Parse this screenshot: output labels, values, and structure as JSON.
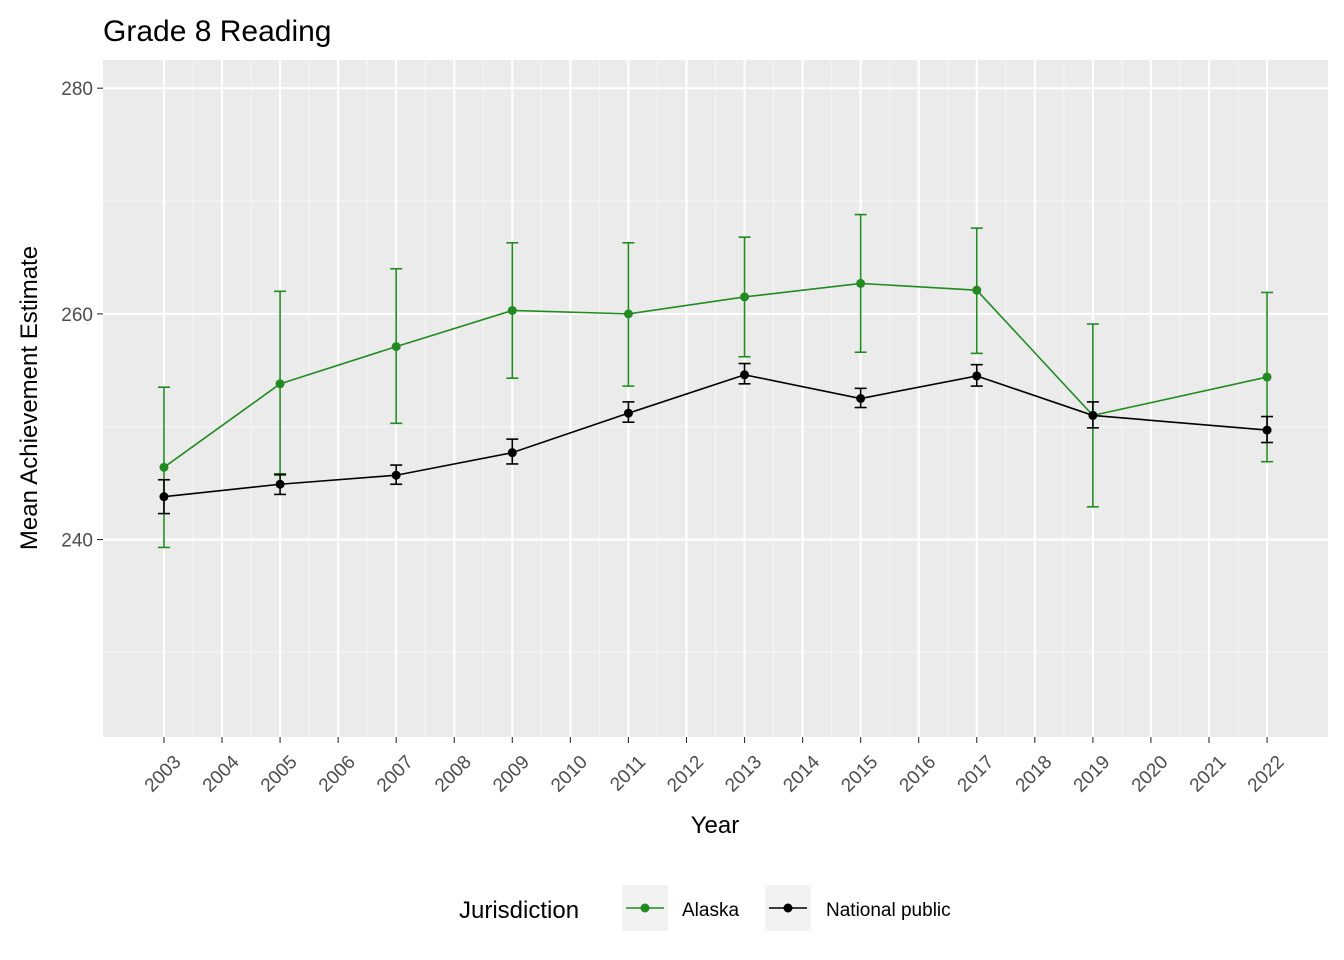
{
  "chart_data": {
    "type": "line",
    "title": "Grade 8 Reading",
    "xlabel": "Year",
    "ylabel": "Mean Achievement Estimate",
    "xlim": [
      2001.95,
      2023.05
    ],
    "ylim": [
      222.5,
      282.5
    ],
    "x_ticks": [
      "2003",
      "2004",
      "2005",
      "2006",
      "2007",
      "2008",
      "2009",
      "2010",
      "2011",
      "2012",
      "2013",
      "2014",
      "2015",
      "2016",
      "2017",
      "2018",
      "2019",
      "2020",
      "2021",
      "2022"
    ],
    "y_ticks": [
      "240",
      "260",
      "280"
    ],
    "grid": true,
    "legend": {
      "title": "Jurisdiction",
      "position": "bottom"
    },
    "series": [
      {
        "name": "Alaska",
        "color": "#228b22",
        "points": [
          {
            "x": 2003,
            "y": 246.4,
            "lo": 239.3,
            "hi": 253.5
          },
          {
            "x": 2005,
            "y": 253.8,
            "lo": 245.7,
            "hi": 262.0
          },
          {
            "x": 2007,
            "y": 257.1,
            "lo": 250.3,
            "hi": 264.0
          },
          {
            "x": 2009,
            "y": 260.3,
            "lo": 254.3,
            "hi": 266.3
          },
          {
            "x": 2011,
            "y": 260.0,
            "lo": 253.6,
            "hi": 266.3
          },
          {
            "x": 2013,
            "y": 261.5,
            "lo": 256.2,
            "hi": 266.8
          },
          {
            "x": 2015,
            "y": 262.7,
            "lo": 256.6,
            "hi": 268.8
          },
          {
            "x": 2017,
            "y": 262.1,
            "lo": 256.5,
            "hi": 267.6
          },
          {
            "x": 2019,
            "y": 251.0,
            "lo": 242.9,
            "hi": 259.1
          },
          {
            "x": 2022,
            "y": 254.4,
            "lo": 246.9,
            "hi": 261.9
          }
        ]
      },
      {
        "name": "National public",
        "color": "#000000",
        "points": [
          {
            "x": 2003,
            "y": 243.8,
            "lo": 242.3,
            "hi": 245.3
          },
          {
            "x": 2005,
            "y": 244.9,
            "lo": 244.0,
            "hi": 245.8
          },
          {
            "x": 2007,
            "y": 245.7,
            "lo": 244.9,
            "hi": 246.6
          },
          {
            "x": 2009,
            "y": 247.7,
            "lo": 246.7,
            "hi": 248.9
          },
          {
            "x": 2011,
            "y": 251.2,
            "lo": 250.4,
            "hi": 252.2
          },
          {
            "x": 2013,
            "y": 254.6,
            "lo": 253.8,
            "hi": 255.6
          },
          {
            "x": 2015,
            "y": 252.5,
            "lo": 251.7,
            "hi": 253.4
          },
          {
            "x": 2017,
            "y": 254.5,
            "lo": 253.6,
            "hi": 255.5
          },
          {
            "x": 2019,
            "y": 251.0,
            "lo": 249.9,
            "hi": 252.2
          },
          {
            "x": 2022,
            "y": 249.7,
            "lo": 248.6,
            "hi": 250.9
          }
        ]
      }
    ]
  }
}
